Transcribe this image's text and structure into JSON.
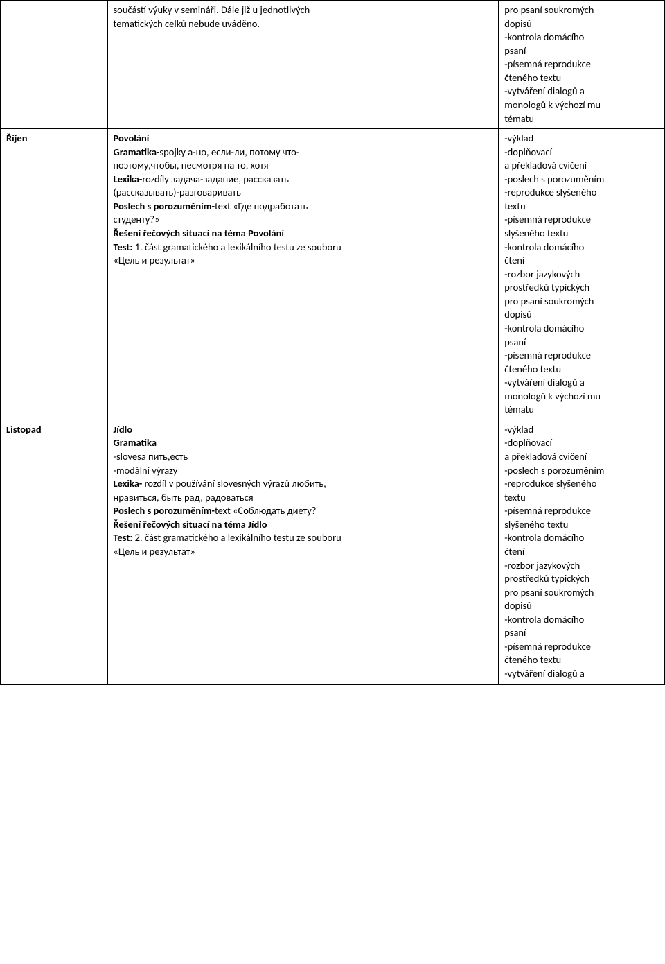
{
  "rows": [
    {
      "month": "",
      "middle": [
        {
          "t": "součástí výuky v semináři. Dále již u jednotlivých"
        },
        {
          "t": "tematických celků nebude uváděno."
        }
      ],
      "right": [
        {
          "t": "pro psaní  soukromých"
        },
        {
          "t": "dopisů"
        },
        {
          "t": "-kontrola domácího"
        },
        {
          "t": "psaní"
        },
        {
          "t": "-písemná reprodukce"
        },
        {
          "t": "čteného textu"
        },
        {
          "t": "-vytváření dialogů  a"
        },
        {
          "t": "monologů k výchozí mu"
        },
        {
          "t": "tématu"
        }
      ]
    },
    {
      "month": "Říjen",
      "middle": [
        {
          "t": "Povolání",
          "bold": true
        },
        {
          "runs": [
            {
              "t": "Gramatika-",
              "bold": true
            },
            {
              "t": "spojky а-но, если-ли, потому что-"
            }
          ]
        },
        {
          "t": "поэтому,чтобы, несмотря на то, хотя"
        },
        {
          "runs": [
            {
              "t": "Lexika-",
              "bold": true
            },
            {
              "t": "rozdíly задача-задание, рассказать"
            }
          ]
        },
        {
          "t": "(рассказывать)-разговаривать"
        },
        {
          "runs": [
            {
              "t": "Poslech s porozuměním-",
              "bold": true
            },
            {
              "t": "text «Где подработать"
            }
          ]
        },
        {
          "t": "студенту?»"
        },
        {
          "t": "Řešení řečových situací na téma Povolání",
          "bold": true
        },
        {
          "runs": [
            {
              "t": "Test: ",
              "bold": true
            },
            {
              "t": "1. část gramatického a lexikálního testu ze souboru"
            }
          ]
        },
        {
          "t": "«Цель и результат»"
        }
      ],
      "right": [
        {
          "t": "-výklad"
        },
        {
          "t": "-doplňovací"
        },
        {
          "t": "a překladová cvičení"
        },
        {
          "t": "-poslech s porozuměním"
        },
        {
          "t": "-reprodukce slyšeného"
        },
        {
          "t": "textu"
        },
        {
          "t": "-písemná reprodukce"
        },
        {
          "t": "slyšeného textu"
        },
        {
          "t": "-kontrola domácího"
        },
        {
          "t": "čtení"
        },
        {
          "t": "-rozbor jazykových"
        },
        {
          "t": "prostředků typických"
        },
        {
          "t": "pro psaní  soukromých"
        },
        {
          "t": "dopisů"
        },
        {
          "t": "-kontrola domácího"
        },
        {
          "t": "psaní"
        },
        {
          "t": "-písemná reprodukce"
        },
        {
          "t": "čteného textu"
        },
        {
          "t": "-vytváření dialogů  a"
        },
        {
          "t": "monologů k výchozí mu"
        },
        {
          "t": "tématu"
        }
      ]
    },
    {
      "month": "Listopad",
      "middle": [
        {
          "t": "Jídlo",
          "bold": true
        },
        {
          "t": "Gramatika",
          "bold": true
        },
        {
          "t": "-slovesa пить,есть"
        },
        {
          "t": "-modální výrazy"
        },
        {
          "runs": [
            {
              "t": "Lexika- ",
              "bold": true
            },
            {
              "t": "rozdíl v používání slovesných výrazů любить,"
            }
          ]
        },
        {
          "t": "нравиться, быть рад, радоваться"
        },
        {
          "runs": [
            {
              "t": "Poslech s porozuměním-",
              "bold": true
            },
            {
              "t": "text «Соблюдать диету?"
            }
          ]
        },
        {
          "t": "Řešení řečových situací na téma Jídlo",
          "bold": true
        },
        {
          "runs": [
            {
              "t": "Test: ",
              "bold": true
            },
            {
              "t": "2. část gramatického a lexikálního testu ze souboru"
            }
          ]
        },
        {
          "t": "«Цель и результат»"
        }
      ],
      "right": [
        {
          "t": "-výklad"
        },
        {
          "t": "-doplňovací"
        },
        {
          "t": "a překladová cvičení"
        },
        {
          "t": "-poslech s porozuměním"
        },
        {
          "t": "-reprodukce slyšeného"
        },
        {
          "t": "textu"
        },
        {
          "t": "-písemná reprodukce"
        },
        {
          "t": "slyšeného textu"
        },
        {
          "t": "-kontrola domácího"
        },
        {
          "t": "čtení"
        },
        {
          "t": "-rozbor jazykových"
        },
        {
          "t": "prostředků typických"
        },
        {
          "t": "pro psaní  soukromých"
        },
        {
          "t": "dopisů"
        },
        {
          "t": "-kontrola domácího"
        },
        {
          "t": "psaní"
        },
        {
          "t": "-písemná reprodukce"
        },
        {
          "t": "čteného textu"
        },
        {
          "t": "-vytváření dialogů  a"
        }
      ]
    }
  ]
}
